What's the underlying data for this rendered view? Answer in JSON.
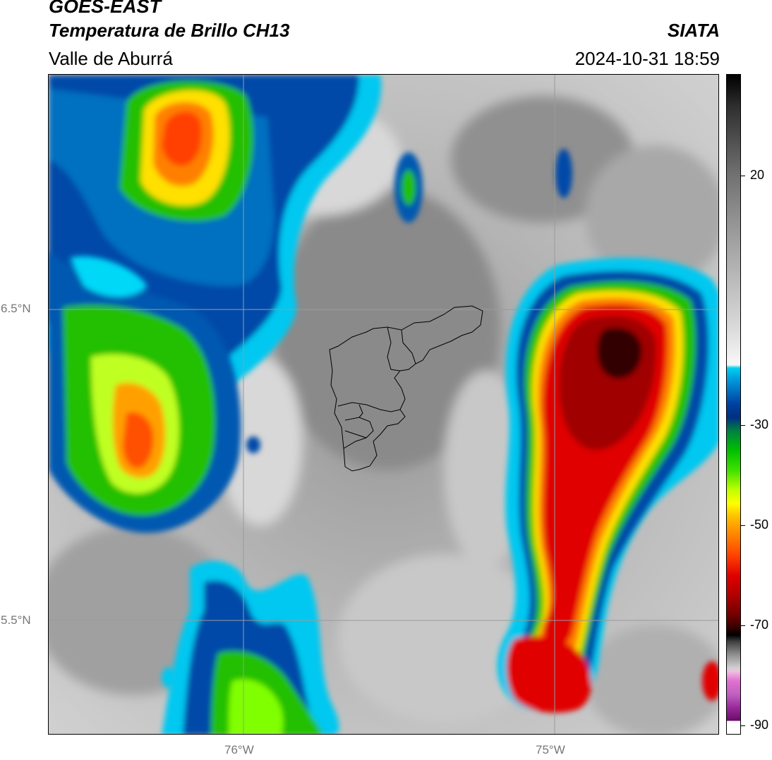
{
  "header": {
    "satellite": "GOES-EAST",
    "product": "Temperatura de Brillo CH13",
    "region": "Valle de Aburrá",
    "agency": "SIATA",
    "datetime": "2024-10-31 18:59"
  },
  "map": {
    "lat_labels": [
      "6.5°N",
      "5.5°N"
    ],
    "lon_labels": [
      "76°W",
      "75°W"
    ]
  },
  "colorbar": {
    "ticks": [
      "20",
      "-30",
      "-50",
      "-70",
      "-90"
    ]
  },
  "colors": {
    "cold_core": "#200000",
    "red": "#d00000",
    "green": "#20c000",
    "blue": "#0040a0",
    "cyan": "#00d0f0",
    "gray": "#a0a0a0"
  }
}
